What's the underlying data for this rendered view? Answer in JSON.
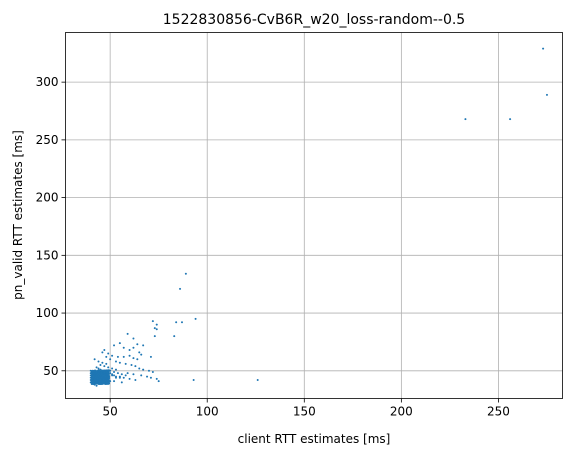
{
  "chart_data": {
    "type": "scatter",
    "title": "1522830856-CvB6R_w20_loss-random--0.5",
    "xlabel": "client RTT estimates [ms]",
    "ylabel": "pn_valid RTT estimates [ms]",
    "xlim": [
      27,
      283
    ],
    "ylim": [
      26,
      343
    ],
    "xticks": [
      50,
      100,
      150,
      200,
      250
    ],
    "yticks": [
      50,
      100,
      150,
      200,
      250,
      300
    ],
    "grid": true,
    "marker_color": "#1f77b4",
    "series": [
      {
        "points": [
          [
            273,
            329
          ],
          [
            275,
            289
          ],
          [
            233,
            268
          ],
          [
            256,
            268
          ],
          [
            89,
            134
          ],
          [
            86,
            121
          ],
          [
            94,
            95
          ],
          [
            72,
            93
          ],
          [
            74,
            90
          ],
          [
            84,
            92
          ],
          [
            87,
            92
          ],
          [
            73,
            87
          ],
          [
            74,
            86
          ],
          [
            83,
            80
          ],
          [
            73,
            80
          ],
          [
            59,
            82
          ],
          [
            62,
            78
          ],
          [
            64,
            73
          ],
          [
            67,
            72
          ],
          [
            62,
            70
          ],
          [
            55,
            74
          ],
          [
            52,
            72
          ],
          [
            57,
            70
          ],
          [
            60,
            68
          ],
          [
            65,
            66
          ],
          [
            66,
            64
          ],
          [
            71,
            62
          ],
          [
            75,
            41
          ],
          [
            93,
            42
          ],
          [
            126,
            42
          ],
          [
            49,
            65
          ],
          [
            51,
            63
          ],
          [
            54,
            62
          ],
          [
            57,
            62
          ],
          [
            60,
            63
          ],
          [
            62,
            61
          ],
          [
            64,
            60
          ],
          [
            47,
            68
          ],
          [
            46,
            66
          ],
          [
            48,
            62
          ],
          [
            50,
            60
          ],
          [
            53,
            58
          ],
          [
            55,
            57
          ],
          [
            58,
            56
          ],
          [
            61,
            55
          ],
          [
            63,
            54
          ],
          [
            65,
            52
          ],
          [
            67,
            51
          ],
          [
            70,
            50
          ],
          [
            72,
            49
          ],
          [
            59,
            48
          ],
          [
            62,
            47
          ],
          [
            66,
            46
          ],
          [
            69,
            45
          ],
          [
            71,
            44
          ],
          [
            74,
            43
          ],
          [
            55,
            45
          ],
          [
            57,
            44
          ],
          [
            60,
            43
          ],
          [
            63,
            42
          ],
          [
            52,
            41
          ],
          [
            56,
            40
          ],
          [
            42,
            60
          ],
          [
            44,
            58
          ],
          [
            46,
            57
          ],
          [
            48,
            56
          ],
          [
            45,
            55
          ],
          [
            47,
            54
          ],
          [
            49,
            53
          ],
          [
            51,
            52
          ],
          [
            53,
            51
          ],
          [
            50,
            50
          ],
          [
            52,
            49
          ],
          [
            54,
            48
          ],
          [
            56,
            47
          ],
          [
            58,
            46
          ],
          [
            51,
            46
          ],
          [
            53,
            45
          ],
          [
            55,
            44
          ],
          [
            49,
            44
          ],
          [
            43,
            53
          ],
          [
            44,
            52
          ],
          [
            45,
            51
          ],
          [
            46,
            50
          ],
          [
            47,
            49
          ],
          [
            48,
            48
          ],
          [
            41,
            50
          ],
          [
            42,
            49
          ],
          [
            43,
            48
          ],
          [
            44,
            47
          ],
          [
            45,
            46
          ],
          [
            46,
            45
          ],
          [
            47,
            44
          ],
          [
            48,
            43
          ],
          [
            49,
            42
          ],
          [
            50,
            41
          ],
          [
            47,
            40
          ],
          [
            45,
            39
          ],
          [
            42,
            38
          ],
          [
            43,
            37
          ],
          [
            44,
            39
          ],
          [
            41,
            41
          ],
          [
            42,
            42
          ],
          [
            43,
            43
          ],
          [
            44,
            44
          ],
          [
            45,
            45
          ],
          [
            46,
            46
          ],
          [
            47,
            47
          ],
          [
            48,
            46
          ],
          [
            49,
            47
          ],
          [
            41,
            45
          ],
          [
            42,
            46
          ],
          [
            43,
            44
          ],
          [
            44,
            43
          ],
          [
            45,
            42
          ],
          [
            46,
            41
          ],
          [
            41,
            43
          ],
          [
            42,
            44
          ],
          [
            43,
            45
          ],
          [
            44,
            46
          ],
          [
            45,
            47
          ],
          [
            46,
            48
          ],
          [
            41,
            47
          ],
          [
            42,
            48
          ],
          [
            43,
            46
          ],
          [
            44,
            45
          ],
          [
            45,
            44
          ],
          [
            46,
            43
          ],
          [
            41,
            39
          ],
          [
            42,
            40
          ],
          [
            43,
            41
          ],
          [
            44,
            42
          ],
          [
            45,
            43
          ],
          [
            46,
            44
          ],
          [
            47,
            45
          ],
          [
            48,
            44
          ],
          [
            47,
            43
          ],
          [
            48,
            42
          ],
          [
            46,
            42
          ],
          [
            47,
            41
          ],
          [
            41,
            44
          ],
          [
            42,
            45
          ],
          [
            43,
            47
          ],
          [
            44,
            48
          ],
          [
            45,
            48
          ],
          [
            46,
            47
          ],
          [
            40,
            46
          ],
          [
            40,
            44
          ],
          [
            40,
            42
          ],
          [
            40,
            40
          ],
          [
            40,
            48
          ],
          [
            40,
            50
          ],
          [
            48,
            50
          ],
          [
            49,
            49
          ],
          [
            50,
            48
          ],
          [
            51,
            47
          ],
          [
            52,
            46
          ],
          [
            53,
            44
          ],
          [
            44,
            50
          ],
          [
            45,
            49
          ],
          [
            46,
            49
          ],
          [
            47,
            50
          ],
          [
            43,
            49
          ],
          [
            42,
            47
          ],
          [
            41,
            46
          ],
          [
            41,
            42
          ],
          [
            41,
            40
          ],
          [
            42,
            39
          ],
          [
            43,
            40
          ],
          [
            44,
            41
          ]
        ]
      }
    ]
  }
}
